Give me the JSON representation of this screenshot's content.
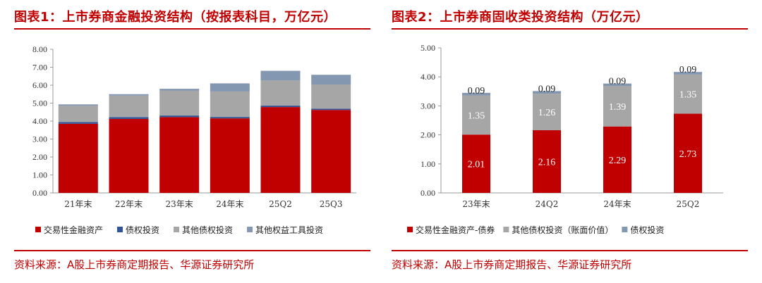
{
  "colors": {
    "accent": "#c00000",
    "red_series": "#c00000",
    "blue_series": "#2f5597",
    "gray_series": "#a6a6a6",
    "bluegray_series": "#8497b0"
  },
  "left": {
    "title": "图表1：上市券商金融投资结构（按报表科目，万亿元）",
    "source": "资料来源：A股上市券商定期报告、华源证券研究所"
  },
  "right": {
    "title": "图表2：上市券商固收类投资结构（万亿元）",
    "source": "资料来源：A股上市券商定期报告、华源证券研究所"
  },
  "chart_data": [
    {
      "type": "bar",
      "stacked": true,
      "title": "图表1：上市券商金融投资结构（按报表科目，万亿元）",
      "categories": [
        "21年末",
        "22年末",
        "23年末",
        "24年末",
        "25Q2",
        "25Q3"
      ],
      "ylim": [
        0,
        8
      ],
      "yticks": [
        "0.00",
        "1.00",
        "2.00",
        "3.00",
        "4.00",
        "5.00",
        "6.00",
        "7.00",
        "8.00"
      ],
      "grid": false,
      "legend_position": "bottom",
      "series": [
        {
          "name": "交易性金融资产",
          "color": "#c00000",
          "values": [
            3.85,
            4.12,
            4.22,
            4.15,
            4.78,
            4.62
          ]
        },
        {
          "name": "债权投资",
          "color": "#2f5597",
          "values": [
            0.1,
            0.1,
            0.09,
            0.08,
            0.08,
            0.07
          ]
        },
        {
          "name": "其他债权投资",
          "color": "#a6a6a6",
          "values": [
            0.9,
            1.2,
            1.38,
            1.42,
            1.4,
            1.35
          ]
        },
        {
          "name": "其他权益工具投资",
          "color": "#8497b0",
          "values": [
            0.08,
            0.08,
            0.11,
            0.45,
            0.54,
            0.54
          ]
        }
      ]
    },
    {
      "type": "bar",
      "stacked": true,
      "title": "图表2：上市券商固收类投资结构（万亿元）",
      "categories": [
        "23年末",
        "24Q2",
        "24年末",
        "25Q2"
      ],
      "ylim": [
        0,
        5
      ],
      "yticks": [
        "0.00",
        "1.00",
        "2.00",
        "3.00",
        "4.00",
        "5.00"
      ],
      "grid": false,
      "legend_position": "bottom",
      "series": [
        {
          "name": "交易性金融资产-债券",
          "color": "#c00000",
          "values": [
            2.01,
            2.16,
            2.29,
            2.73
          ],
          "labels": [
            "2.01",
            "2.16",
            "2.29",
            "2.73"
          ]
        },
        {
          "name": "其他债权投资（账面价值）",
          "color": "#a6a6a6",
          "values": [
            1.35,
            1.26,
            1.39,
            1.35
          ],
          "labels": [
            "1.35",
            "1.26",
            "1.39",
            "1.35"
          ]
        },
        {
          "name": "债权投资",
          "color": "#8497b0",
          "values": [
            0.09,
            0.09,
            0.09,
            0.09
          ],
          "labels": [
            "0.09",
            "0.09",
            "0.09",
            "0.09"
          ]
        }
      ]
    }
  ]
}
